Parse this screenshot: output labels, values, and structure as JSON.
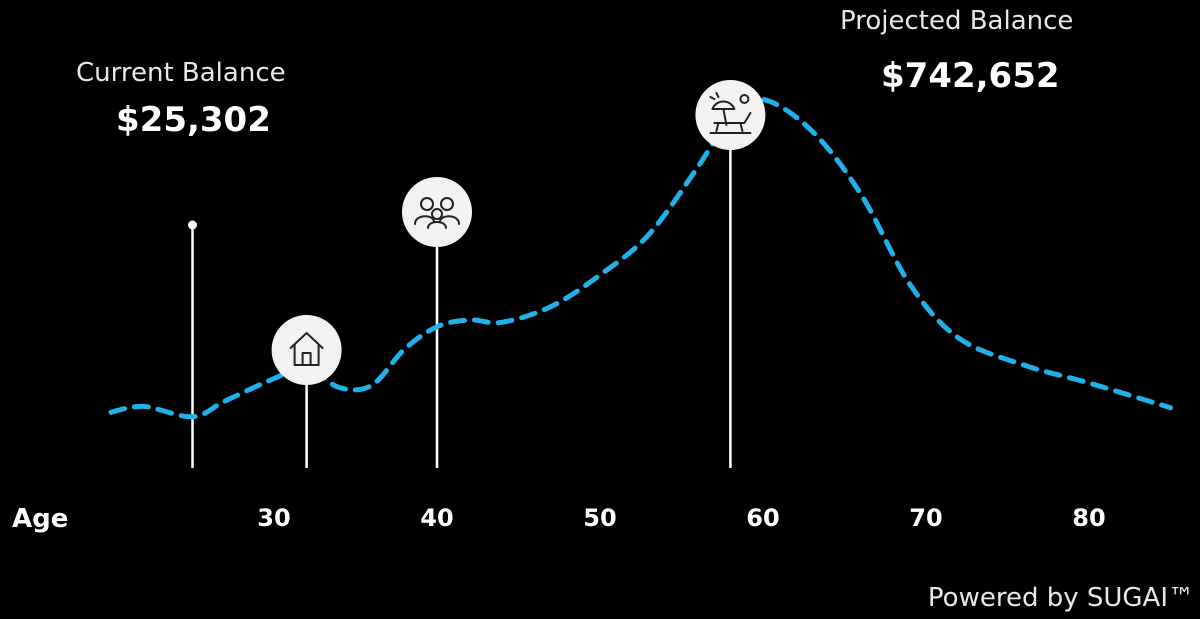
{
  "current_balance": {
    "label": "Current Balance",
    "value": "$25,302"
  },
  "projected_balance": {
    "label": "Projected Balance",
    "value": "$742,652"
  },
  "footer": "Powered by SUGAI™",
  "colors": {
    "curve": "#1fb1e8",
    "background": "#000000",
    "marker": "#ffffff",
    "icon_bg": "#f2f2f2"
  },
  "milestone_icons": [
    "house-icon",
    "family-icon",
    "beach-chair-icon"
  ],
  "chart_data": {
    "type": "line",
    "xlabel": "Age",
    "x_ticks": [
      30,
      40,
      50,
      60,
      70,
      80
    ],
    "xlim": [
      19,
      85
    ],
    "ylim": [
      0,
      800000
    ],
    "series": [
      {
        "x": [
          20,
          22,
          25,
          27,
          30,
          32,
          34,
          36,
          38,
          40,
          42,
          44,
          47,
          50,
          53,
          56,
          58,
          60,
          63,
          66,
          69,
          72,
          76,
          80,
          85
        ],
        "y": [
          35000,
          48000,
          25000,
          60000,
          110000,
          135000,
          90000,
          95000,
          175000,
          225000,
          240000,
          235000,
          270000,
          340000,
          430000,
          580000,
          690000,
          730000,
          660000,
          520000,
          320000,
          200000,
          140000,
          100000,
          45000
        ]
      }
    ],
    "markers": [
      {
        "name": "current",
        "x": 25,
        "icon": ""
      },
      {
        "name": "home-purchase",
        "x": 32,
        "icon": "house-icon"
      },
      {
        "name": "family",
        "x": 40,
        "icon": "family-icon"
      },
      {
        "name": "retirement",
        "x": 58,
        "icon": "beach-chair-icon"
      }
    ]
  }
}
